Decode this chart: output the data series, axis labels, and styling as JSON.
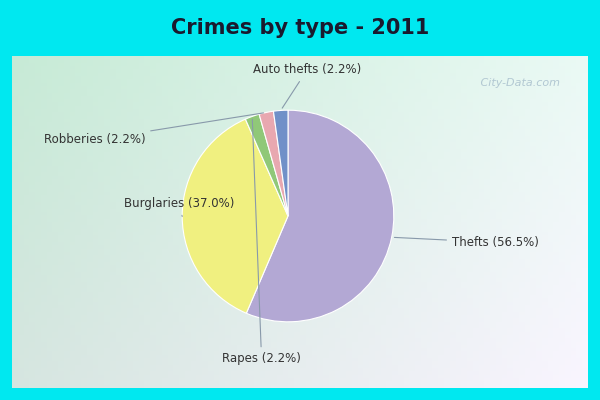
{
  "title": "Crimes by type - 2011",
  "title_fontsize": 15,
  "slices": [
    {
      "label": "Thefts (56.5%)",
      "value": 56.5,
      "color": "#b3a8d4"
    },
    {
      "label": "Burglaries (37.0%)",
      "value": 37.0,
      "color": "#f0f080"
    },
    {
      "label": "Rapes (2.2%)",
      "value": 2.2,
      "color": "#90c878"
    },
    {
      "label": "Robberies (2.2%)",
      "value": 2.2,
      "color": "#e8a8b0"
    },
    {
      "label": "Auto thefts (2.2%)",
      "value": 2.2,
      "color": "#7090c8"
    }
  ],
  "background_outer": "#00e8f0",
  "background_inner_color": "#c8e8d8",
  "watermark": " City-Data.com",
  "label_fontsize": 8.5,
  "startangle": 90,
  "label_configs": [
    {
      "label": "Thefts (56.5%)",
      "xt": 1.55,
      "yt": -0.25,
      "ha": "left",
      "wi": 0
    },
    {
      "label": "Burglaries (37.0%)",
      "xt": -1.55,
      "yt": 0.12,
      "ha": "left",
      "wi": 1
    },
    {
      "label": "Rapes (2.2%)",
      "xt": -0.25,
      "yt": -1.35,
      "ha": "center",
      "wi": 2
    },
    {
      "label": "Robberies (2.2%)",
      "xt": -1.35,
      "yt": 0.72,
      "ha": "right",
      "wi": 3
    },
    {
      "label": "Auto thefts (2.2%)",
      "xt": 0.18,
      "yt": 1.38,
      "ha": "center",
      "wi": 4
    }
  ]
}
